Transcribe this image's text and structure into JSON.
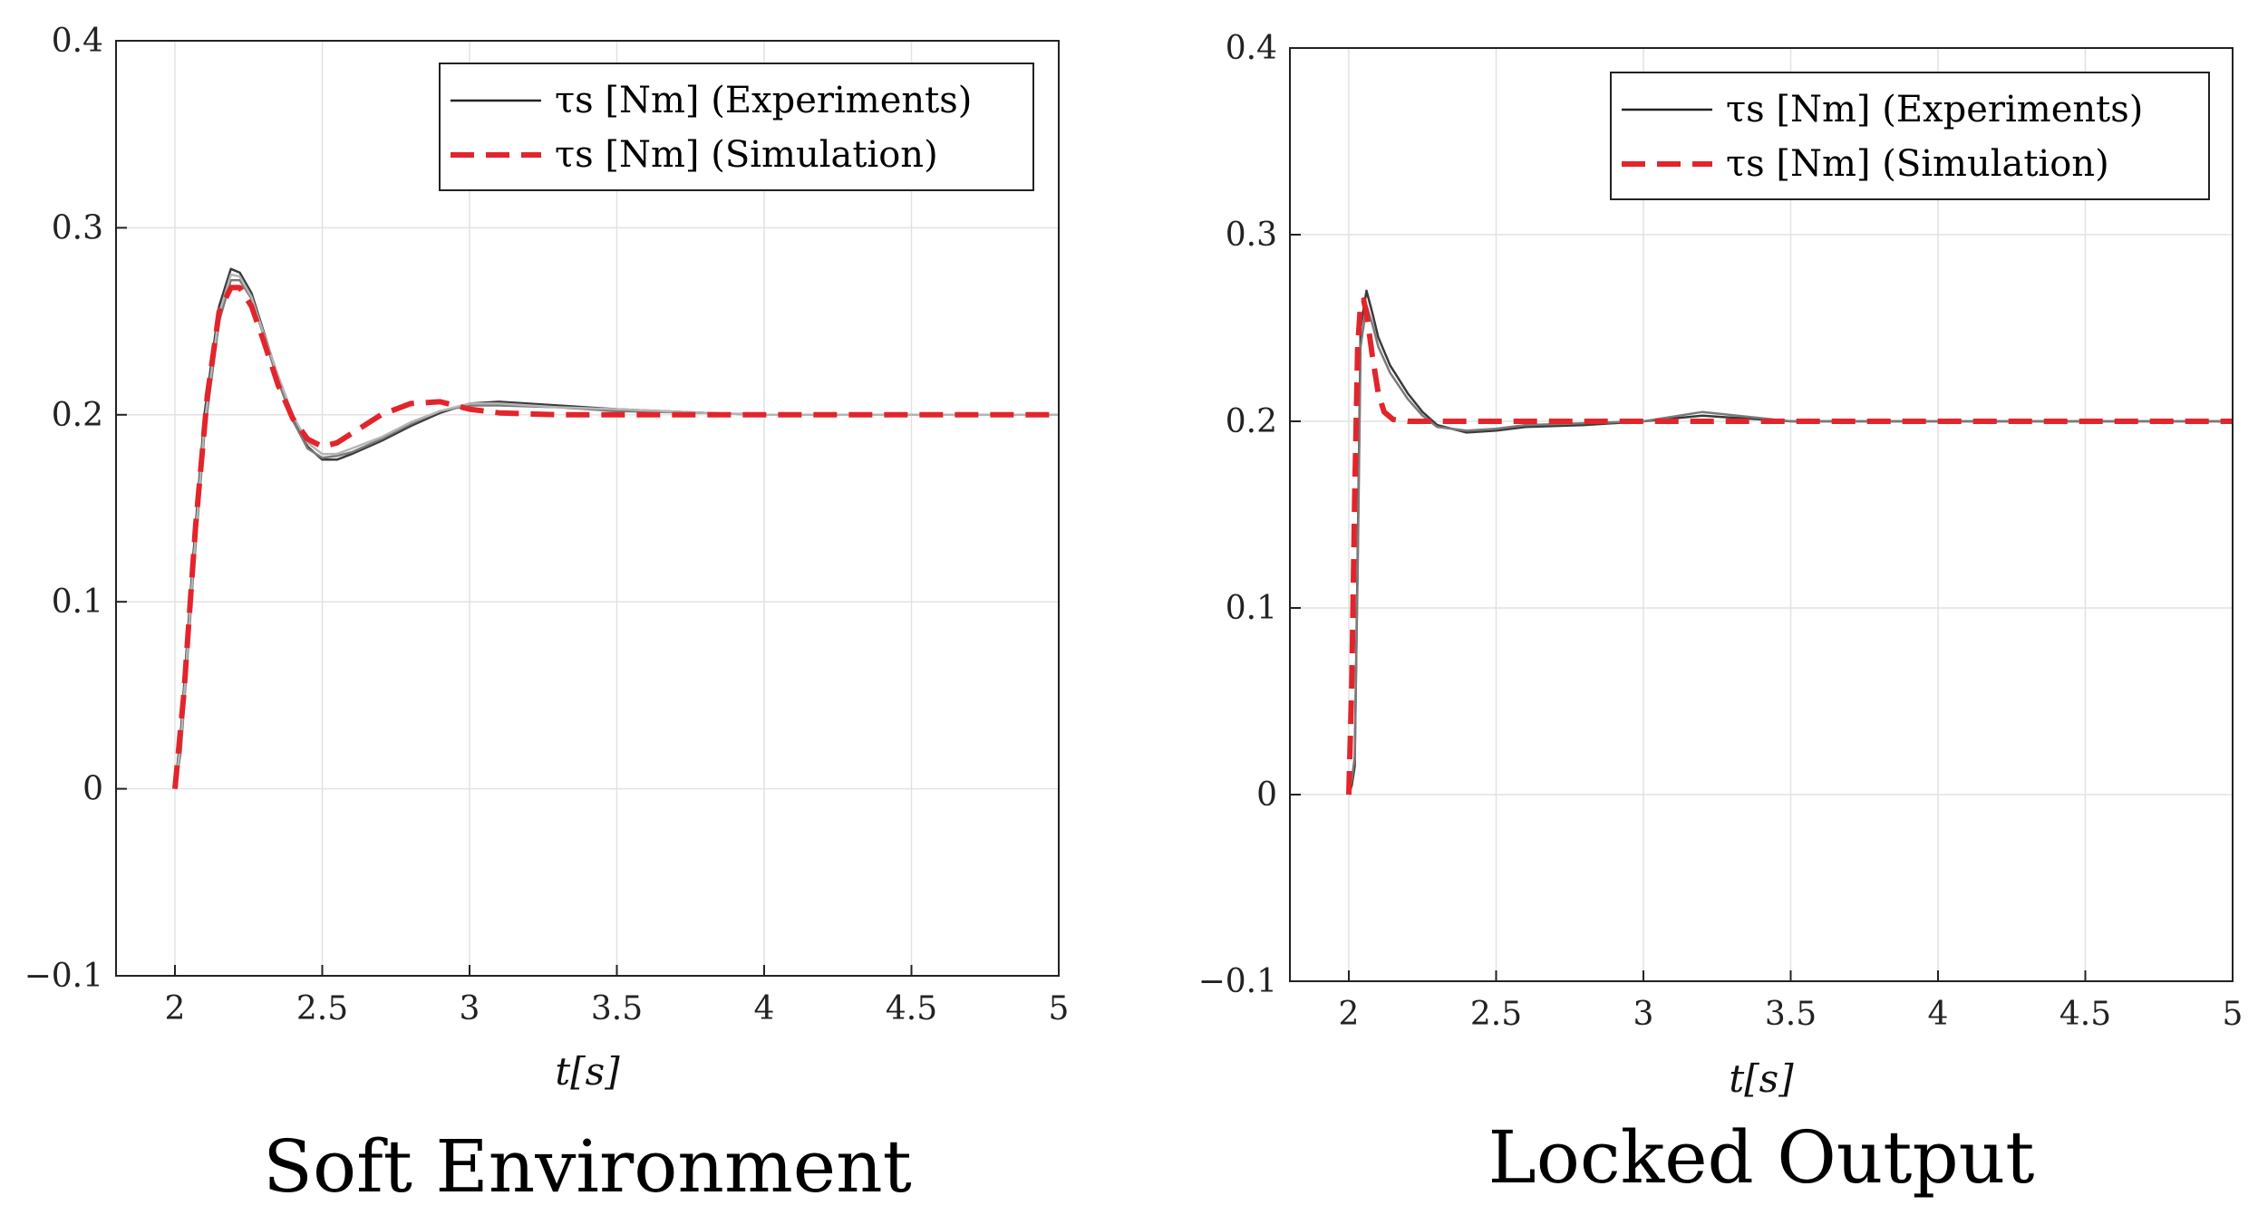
{
  "chart_data": [
    {
      "type": "line",
      "caption": "Soft Environment",
      "xlabel": "t[s]",
      "ylabel": "",
      "xlim": [
        1.8,
        5
      ],
      "ylim": [
        -0.1,
        0.4
      ],
      "xticks": [
        2,
        2.5,
        3,
        3.5,
        4,
        4.5,
        5
      ],
      "yticks": [
        -0.1,
        0,
        0.1,
        0.2,
        0.3,
        0.4
      ],
      "xtick_labels": [
        "2",
        "2.5",
        "3",
        "3.5",
        "4",
        "4.5",
        "5"
      ],
      "ytick_labels": [
        "−0.1",
        "0",
        "0.1",
        "0.2",
        "0.3",
        "0.4"
      ],
      "grid": true,
      "legend_position": "top-right",
      "series": [
        {
          "name": "τs [Nm] (Experiments)",
          "style": "solid",
          "color": "#222222",
          "runs": [
            {
              "x": [
                2.0,
                2.02,
                2.06,
                2.1,
                2.15,
                2.19,
                2.22,
                2.26,
                2.3,
                2.35,
                2.4,
                2.45,
                2.5,
                2.55,
                2.6,
                2.7,
                2.8,
                2.9,
                3.0,
                3.1,
                3.3,
                3.5,
                3.8,
                4.0,
                4.5,
                5.0
              ],
              "y": [
                0.0,
                0.03,
                0.12,
                0.2,
                0.258,
                0.278,
                0.276,
                0.265,
                0.245,
                0.22,
                0.198,
                0.183,
                0.176,
                0.176,
                0.179,
                0.186,
                0.194,
                0.201,
                0.206,
                0.207,
                0.205,
                0.203,
                0.201,
                0.2,
                0.2,
                0.2
              ]
            },
            {
              "x": [
                2.0,
                2.02,
                2.06,
                2.1,
                2.15,
                2.19,
                2.22,
                2.26,
                2.3,
                2.35,
                2.4,
                2.45,
                2.5,
                2.55,
                2.6,
                2.7,
                2.8,
                2.9,
                3.0,
                3.1,
                3.3,
                3.5,
                3.8,
                4.0,
                4.5,
                5.0
              ],
              "y": [
                0.0,
                0.02,
                0.11,
                0.19,
                0.25,
                0.272,
                0.272,
                0.262,
                0.243,
                0.218,
                0.197,
                0.182,
                0.177,
                0.178,
                0.18,
                0.187,
                0.195,
                0.202,
                0.205,
                0.205,
                0.204,
                0.202,
                0.201,
                0.2,
                0.2,
                0.2
              ]
            },
            {
              "x": [
                2.0,
                2.02,
                2.06,
                2.1,
                2.15,
                2.19,
                2.22,
                2.26,
                2.3,
                2.35,
                2.4,
                2.45,
                2.5,
                2.55,
                2.6,
                2.7,
                2.8,
                2.9,
                3.0,
                3.1,
                3.3,
                3.5,
                3.8,
                4.0,
                4.5,
                5.0
              ],
              "y": [
                0.0,
                0.025,
                0.115,
                0.195,
                0.254,
                0.275,
                0.274,
                0.263,
                0.244,
                0.221,
                0.2,
                0.185,
                0.179,
                0.179,
                0.182,
                0.188,
                0.196,
                0.202,
                0.206,
                0.206,
                0.204,
                0.203,
                0.201,
                0.2,
                0.2,
                0.2
              ]
            }
          ]
        },
        {
          "name": "τs [Nm] (Simulation)",
          "style": "dashed",
          "color": "#e3242b",
          "x": [
            2.0,
            2.03,
            2.07,
            2.11,
            2.15,
            2.19,
            2.22,
            2.26,
            2.3,
            2.35,
            2.4,
            2.45,
            2.5,
            2.55,
            2.6,
            2.7,
            2.8,
            2.9,
            3.0,
            3.1,
            3.3,
            3.5,
            4.0,
            5.0
          ],
          "y": [
            0.0,
            0.05,
            0.14,
            0.21,
            0.255,
            0.268,
            0.268,
            0.258,
            0.24,
            0.216,
            0.198,
            0.187,
            0.183,
            0.185,
            0.19,
            0.2,
            0.206,
            0.207,
            0.203,
            0.201,
            0.2,
            0.2,
            0.2,
            0.2
          ]
        }
      ]
    },
    {
      "type": "line",
      "caption": "Locked Output",
      "xlabel": "t[s]",
      "ylabel": "",
      "xlim": [
        1.8,
        5
      ],
      "ylim": [
        -0.1,
        0.4
      ],
      "xticks": [
        2,
        2.5,
        3,
        3.5,
        4,
        4.5,
        5
      ],
      "yticks": [
        -0.1,
        0,
        0.1,
        0.2,
        0.3,
        0.4
      ],
      "xtick_labels": [
        "2",
        "2.5",
        "3",
        "3.5",
        "4",
        "4.5",
        "5"
      ],
      "ytick_labels": [
        "−0.1",
        "0",
        "0.1",
        "0.2",
        "0.3",
        "0.4"
      ],
      "grid": true,
      "legend_position": "top-right",
      "series": [
        {
          "name": "τs [Nm] (Experiments)",
          "style": "solid",
          "color": "#222222",
          "runs": [
            {
              "x": [
                2.0,
                2.01,
                2.02,
                2.03,
                2.04,
                2.06,
                2.08,
                2.1,
                2.14,
                2.2,
                2.25,
                2.3,
                2.4,
                2.5,
                2.6,
                2.8,
                3.0,
                3.2,
                3.5,
                4.0,
                5.0
              ],
              "y": [
                0.0,
                0.005,
                0.015,
                0.13,
                0.25,
                0.27,
                0.258,
                0.245,
                0.23,
                0.215,
                0.205,
                0.198,
                0.194,
                0.195,
                0.197,
                0.198,
                0.2,
                0.203,
                0.2,
                0.2,
                0.2
              ]
            },
            {
              "x": [
                2.0,
                2.01,
                2.02,
                2.03,
                2.04,
                2.06,
                2.08,
                2.1,
                2.14,
                2.2,
                2.25,
                2.3,
                2.4,
                2.5,
                2.6,
                2.8,
                3.0,
                3.2,
                3.5,
                4.0,
                5.0
              ],
              "y": [
                0.0,
                0.008,
                0.02,
                0.12,
                0.24,
                0.262,
                0.252,
                0.24,
                0.226,
                0.212,
                0.203,
                0.197,
                0.195,
                0.196,
                0.198,
                0.199,
                0.2,
                0.205,
                0.2,
                0.2,
                0.2
              ]
            }
          ]
        },
        {
          "name": "τs [Nm] (Simulation)",
          "style": "dashed",
          "color": "#e3242b",
          "x": [
            2.0,
            2.01,
            2.02,
            2.03,
            2.04,
            2.05,
            2.06,
            2.08,
            2.1,
            2.12,
            2.15,
            2.2,
            2.25,
            2.3,
            2.5,
            3.0,
            4.0,
            5.0
          ],
          "y": [
            0.0,
            0.06,
            0.16,
            0.24,
            0.263,
            0.265,
            0.258,
            0.235,
            0.215,
            0.205,
            0.201,
            0.2,
            0.2,
            0.2,
            0.2,
            0.2,
            0.2,
            0.2
          ]
        }
      ]
    }
  ]
}
